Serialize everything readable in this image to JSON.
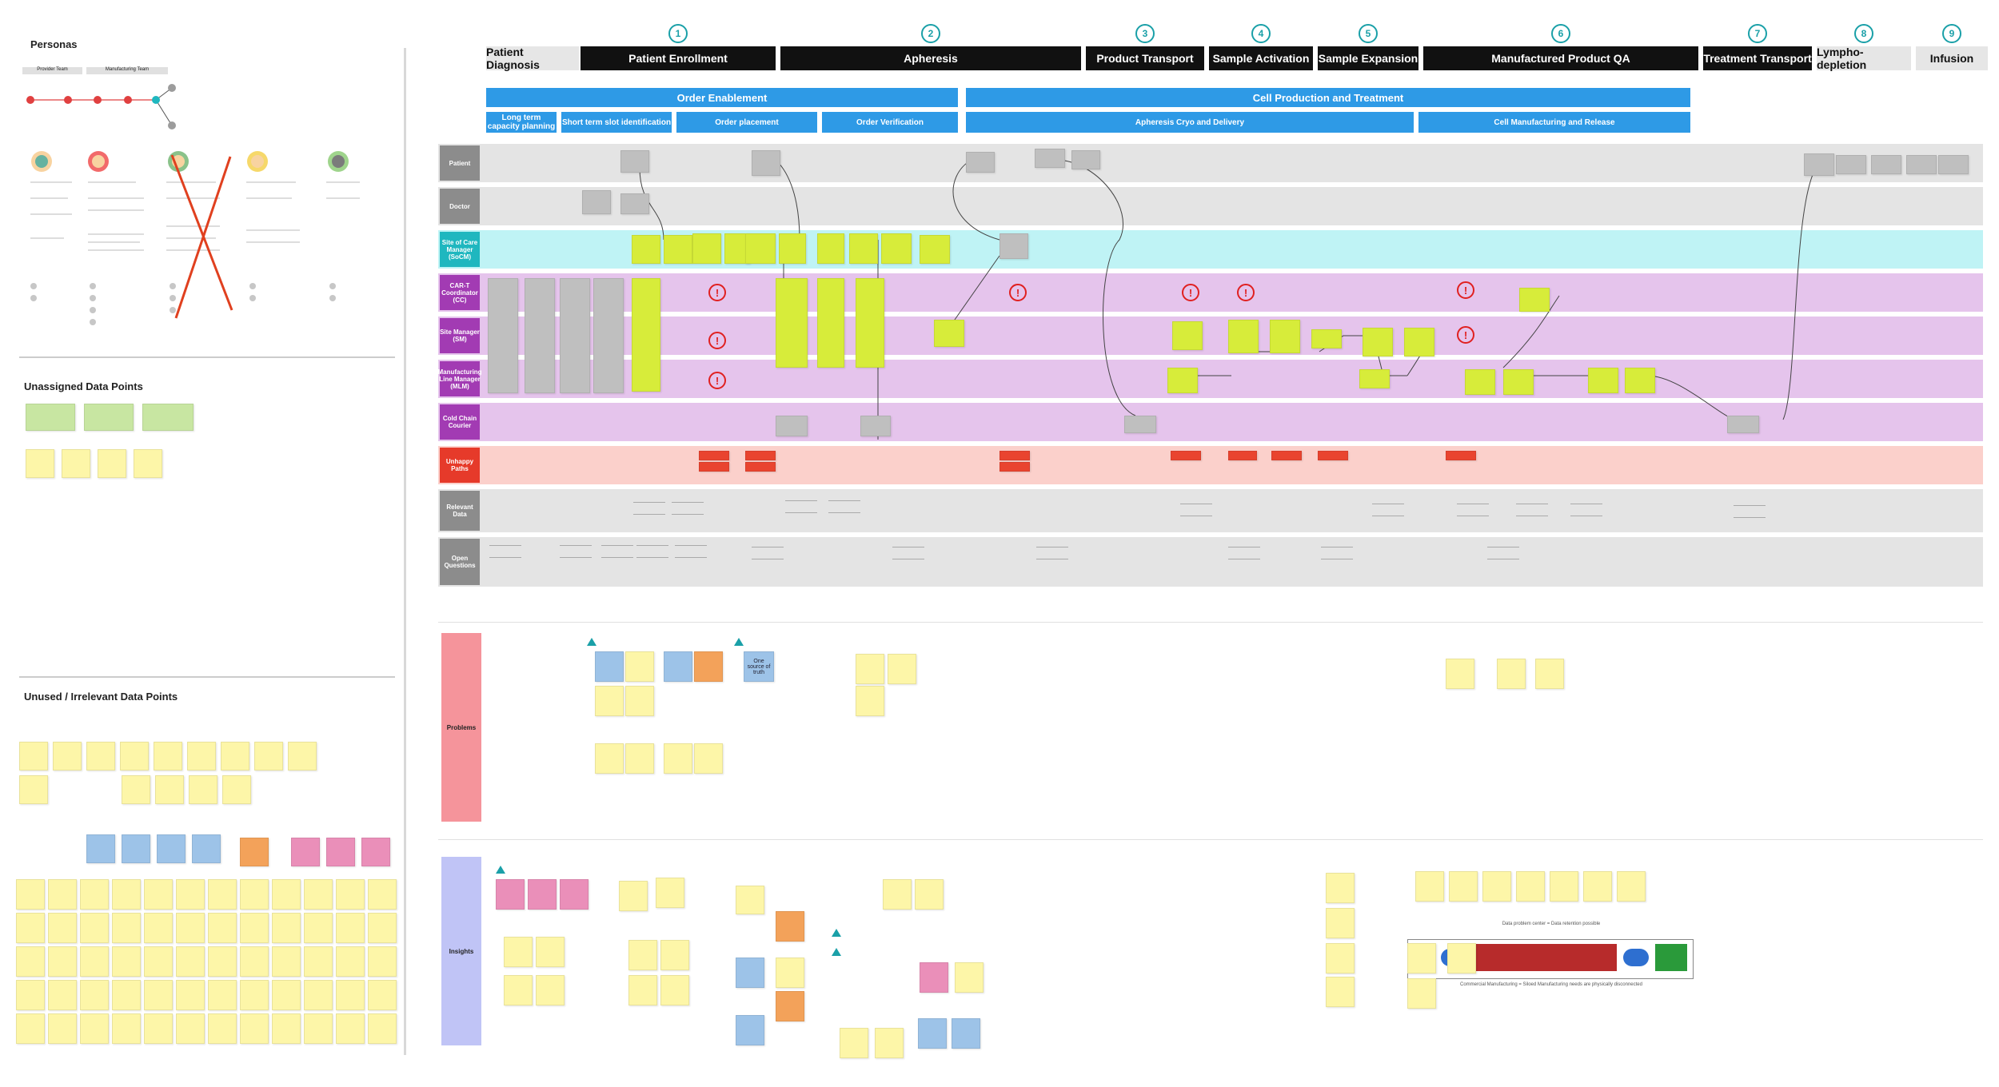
{
  "left_panel": {
    "personas_title": "Personas",
    "provider_team": "Provider Team",
    "manufacturing_team": "Manufacturing Team",
    "unassigned_title": "Unassigned Data Points",
    "unused_title": "Unused / Irrelevant Data Points"
  },
  "stages": [
    {
      "num": "",
      "label": "Patient Diagnosis"
    },
    {
      "num": "1",
      "label": "Patient Enrollment"
    },
    {
      "num": "2",
      "label": "Apheresis"
    },
    {
      "num": "3",
      "label": "Product Transport"
    },
    {
      "num": "4",
      "label": "Sample Activation"
    },
    {
      "num": "5",
      "label": "Sample Expansion"
    },
    {
      "num": "6",
      "label": "Manufactured Product QA"
    },
    {
      "num": "7",
      "label": "Treatment Transport"
    },
    {
      "num": "8",
      "label": "Lympho-depletion"
    },
    {
      "num": "9",
      "label": "Infusion"
    }
  ],
  "bands": {
    "order_enablement": "Order Enablement",
    "cell_production": "Cell Production and Treatment",
    "long_term": "Long term capacity planning",
    "short_term": "Short term slot identification",
    "order_placement": "Order placement",
    "order_verification": "Order Verification",
    "apheresis_cryo": "Apheresis Cryo and Delivery",
    "cell_manufacturing": "Cell Manufacturing and Release"
  },
  "lanes": [
    {
      "label": "Patient",
      "color": "#8c8c8c"
    },
    {
      "label": "Doctor",
      "color": "#8c8c8c"
    },
    {
      "label": "Site of Care Manager (SoCM)",
      "color": "#1fb7bf"
    },
    {
      "label": "CAR-T Coordinator (CC)",
      "color": "#a23bb3"
    },
    {
      "label": "Site Manager (SM)",
      "color": "#a23bb3"
    },
    {
      "label": "Manufacturing Line Manager (MLM)",
      "color": "#a23bb3"
    },
    {
      "label": "Cold Chain Courier",
      "color": "#a23bb3"
    },
    {
      "label": "Unhappy Paths",
      "color": "#e63a2a"
    },
    {
      "label": "Relevant Data",
      "color": "#8c8c8c"
    },
    {
      "label": "Open Questions",
      "color": "#8c8c8c"
    }
  ],
  "sections": {
    "problems": "Problems",
    "insights": "Insights",
    "one_source": "One source of truth",
    "diagram_caption_top": "Data problem center = Data retention possible",
    "diagram_caption_bottom": "Commercial Manufacturing = Siloed Manufacturing needs are physically disconnected"
  },
  "colors": {
    "black_stage": "#111111",
    "band_blue": "#2e9ae6",
    "lane_grey": "#e4e4e4",
    "lane_cyan": "#bff3f5",
    "lane_purple": "#e5c4ec",
    "lane_red": "#fbd0cb",
    "problems_red": "#f5949b",
    "insights_lavender": "#c0c4f6"
  }
}
